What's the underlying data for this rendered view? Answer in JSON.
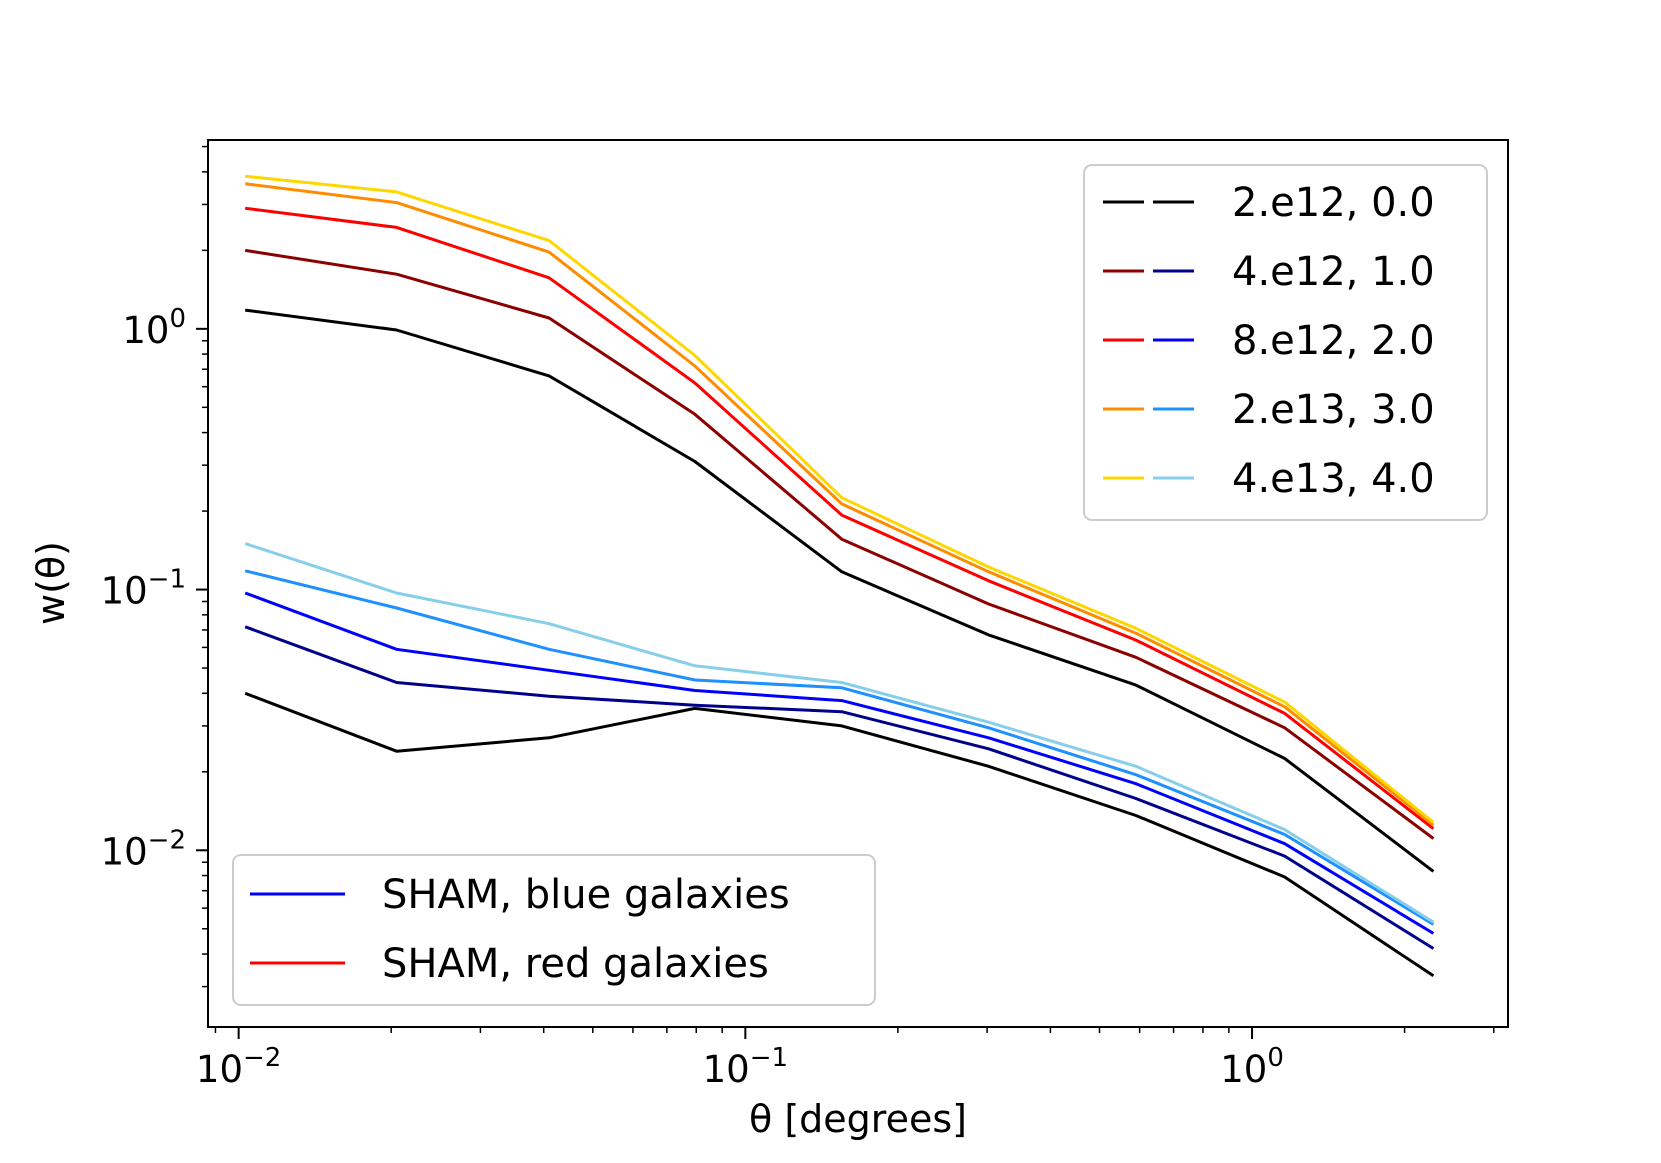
{
  "chart_data": {
    "type": "line",
    "xlabel": "θ [degrees]",
    "ylabel": "w(θ)",
    "xscale": "log",
    "yscale": "log",
    "xlim": [
      0.0087,
      3.2
    ],
    "ylim": [
      0.0021,
      5.3
    ],
    "x_ticks": [
      {
        "value": 0.01,
        "base": "10",
        "exp": "−2"
      },
      {
        "value": 0.1,
        "base": "10",
        "exp": "−1"
      },
      {
        "value": 1,
        "base": "10",
        "exp": "0"
      }
    ],
    "y_ticks": [
      {
        "value": 0.01,
        "base": "10",
        "exp": "−2"
      },
      {
        "value": 0.1,
        "base": "10",
        "exp": "−1"
      },
      {
        "value": 1,
        "base": "10",
        "exp": "0"
      }
    ],
    "grid": false,
    "x": [
      0.0103,
      0.0205,
      0.041,
      0.0795,
      0.155,
      0.302,
      0.59,
      1.16,
      2.28
    ],
    "series": [
      {
        "group": "red",
        "color": "#000000",
        "values": [
          1.18,
          0.99,
          0.66,
          0.31,
          0.117,
          0.067,
          0.043,
          0.0225,
          0.0083
        ]
      },
      {
        "group": "red",
        "color": "#8b0000",
        "values": [
          2.0,
          1.62,
          1.1,
          0.47,
          0.156,
          0.088,
          0.055,
          0.0295,
          0.0111
        ]
      },
      {
        "group": "red",
        "color": "#ff0000",
        "values": [
          2.9,
          2.45,
          1.57,
          0.62,
          0.193,
          0.108,
          0.064,
          0.0335,
          0.0121
        ]
      },
      {
        "group": "red",
        "color": "#ff8c00",
        "values": [
          3.6,
          3.05,
          1.97,
          0.72,
          0.213,
          0.117,
          0.068,
          0.0355,
          0.0125
        ]
      },
      {
        "group": "red",
        "color": "#ffd700",
        "values": [
          3.85,
          3.35,
          2.18,
          0.79,
          0.225,
          0.122,
          0.071,
          0.037,
          0.0128
        ]
      },
      {
        "group": "blue",
        "color": "#000000",
        "values": [
          0.04,
          0.024,
          0.027,
          0.035,
          0.03,
          0.021,
          0.0136,
          0.0079,
          0.0033
        ]
      },
      {
        "group": "blue",
        "color": "#00008b",
        "values": [
          0.072,
          0.044,
          0.039,
          0.036,
          0.034,
          0.0245,
          0.0158,
          0.0095,
          0.0042
        ]
      },
      {
        "group": "blue",
        "color": "#0000ff",
        "values": [
          0.097,
          0.059,
          0.049,
          0.041,
          0.0375,
          0.027,
          0.018,
          0.0106,
          0.0048
        ]
      },
      {
        "group": "blue",
        "color": "#1e90ff",
        "values": [
          0.118,
          0.085,
          0.059,
          0.045,
          0.042,
          0.0295,
          0.0195,
          0.0115,
          0.0052
        ]
      },
      {
        "group": "blue",
        "color": "#87ceeb",
        "values": [
          0.15,
          0.097,
          0.074,
          0.051,
          0.044,
          0.031,
          0.021,
          0.012,
          0.0053
        ]
      }
    ],
    "legend_models": {
      "placement": "top-right",
      "entries": [
        {
          "label": "2.e12, 0.0",
          "red_color": "#000000",
          "blue_color": "#000000"
        },
        {
          "label": "4.e12, 1.0",
          "red_color": "#8b0000",
          "blue_color": "#00008b"
        },
        {
          "label": "8.e12, 2.0",
          "red_color": "#ff0000",
          "blue_color": "#0000ff"
        },
        {
          "label": "2.e13, 3.0",
          "red_color": "#ff8c00",
          "blue_color": "#1e90ff"
        },
        {
          "label": "4.e13, 4.0",
          "red_color": "#ffd700",
          "blue_color": "#87ceeb"
        }
      ]
    },
    "legend_sham": {
      "placement": "bottom-left",
      "entries": [
        {
          "label": "SHAM, blue galaxies",
          "color": "#0000ff"
        },
        {
          "label": "SHAM, red galaxies",
          "color": "#ff0000"
        }
      ]
    }
  }
}
